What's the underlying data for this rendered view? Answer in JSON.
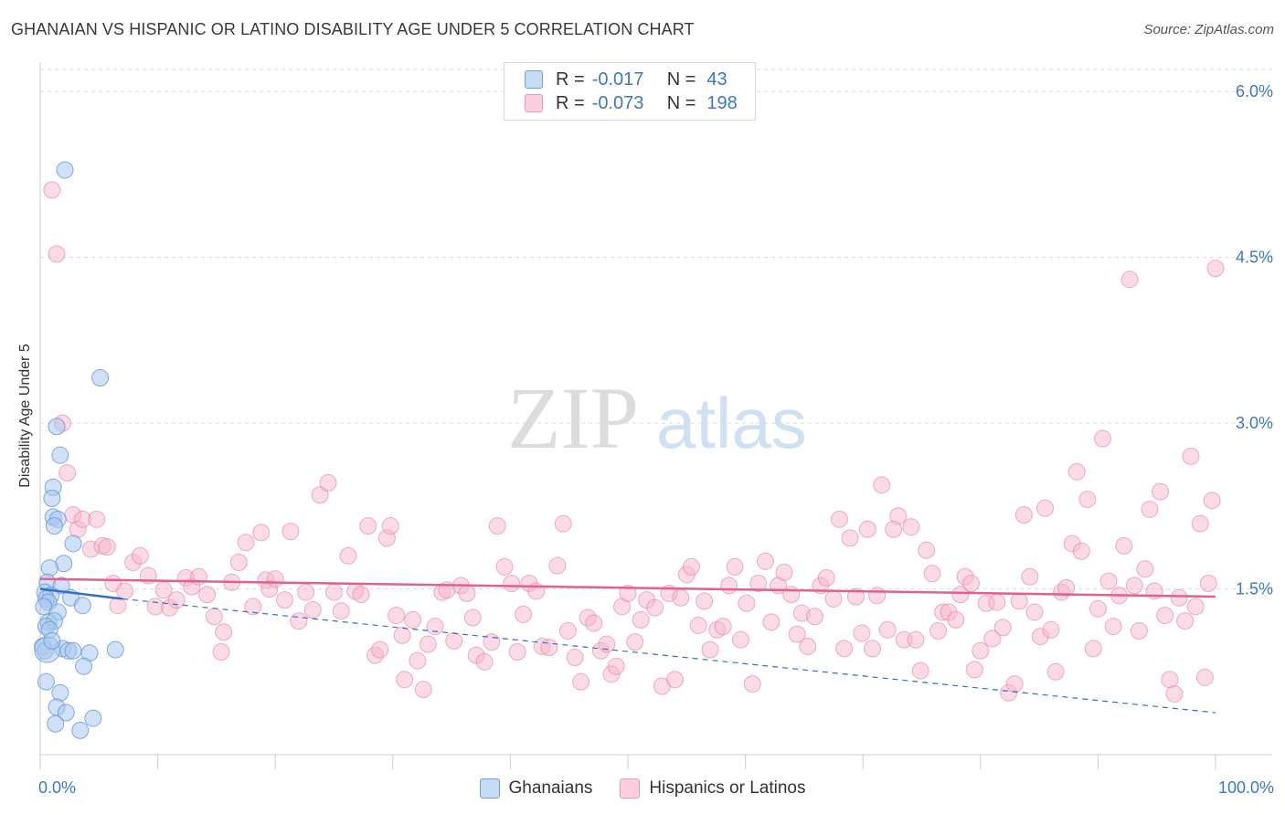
{
  "header": {
    "title": "GHANAIAN VS HISPANIC OR LATINO DISABILITY AGE UNDER 5 CORRELATION CHART",
    "source": "Source: ZipAtlas.com"
  },
  "watermark": {
    "zip": "ZIP",
    "atlas": "atlas"
  },
  "legend": {
    "rows": [
      {
        "r_label": "R =",
        "r_value": "-0.017",
        "n_label": "N =",
        "n_value": "43"
      },
      {
        "r_label": "R =",
        "r_value": "-0.073",
        "n_label": "N =",
        "n_value": "198"
      }
    ]
  },
  "bottom_legend": {
    "series1": "Ghanaians",
    "series2": "Hispanics or Latinos"
  },
  "colors": {
    "blue_fill": "#a9c7ee",
    "blue_stroke": "#5b93d6",
    "blue_line": "#2f6fcf",
    "pink_fill": "#f5b6c9",
    "pink_stroke": "#e47d9e",
    "pink_line": "#e0628c",
    "tick_label": "#3a78c9",
    "grid": "#dddddd"
  },
  "chart_data": {
    "type": "scatter",
    "title": "GHANAIAN VS HISPANIC OR LATINO DISABILITY AGE UNDER 5 CORRELATION CHART",
    "xlabel": "",
    "ylabel": "Disability Age Under 5",
    "xlim": [
      0,
      100
    ],
    "ylim": [
      0,
      6.2
    ],
    "x_tick_labels": [
      "0.0%",
      "100.0%"
    ],
    "y_ticks": [
      1.5,
      3.0,
      4.5,
      6.0
    ],
    "y_tick_labels": [
      "1.5%",
      "3.0%",
      "4.5%",
      "6.0%"
    ],
    "grid": true,
    "legend_position": "top-center",
    "series": [
      {
        "name": "Ghanaians",
        "r": -0.017,
        "n": 43,
        "trend_solid": [
          [
            0,
            1.5
          ],
          [
            7,
            1.41
          ]
        ],
        "trend_dashed": [
          [
            7,
            1.41
          ],
          [
            100,
            0.38
          ]
        ],
        "points": [
          [
            2.1,
            5.29
          ],
          [
            5.1,
            3.41
          ],
          [
            1.7,
            2.71
          ],
          [
            1.4,
            2.97
          ],
          [
            1.1,
            2.42
          ],
          [
            1.0,
            2.32
          ],
          [
            1.1,
            2.15
          ],
          [
            1.5,
            2.13
          ],
          [
            1.2,
            2.07
          ],
          [
            2.8,
            1.91
          ],
          [
            2.0,
            1.73
          ],
          [
            0.8,
            1.69
          ],
          [
            0.6,
            1.56
          ],
          [
            1.8,
            1.53
          ],
          [
            0.4,
            1.47
          ],
          [
            0.9,
            1.44
          ],
          [
            0.5,
            1.41
          ],
          [
            0.7,
            1.38
          ],
          [
            2.6,
            1.42
          ],
          [
            3.6,
            1.35
          ],
          [
            0.3,
            1.34
          ],
          [
            1.5,
            1.29
          ],
          [
            0.7,
            1.2
          ],
          [
            1.2,
            1.21
          ],
          [
            0.5,
            1.16
          ],
          [
            0.8,
            1.13
          ],
          [
            0.2,
            0.98
          ],
          [
            0.4,
            0.94
          ],
          [
            1.9,
            0.96
          ],
          [
            2.4,
            0.94
          ],
          [
            2.8,
            0.94
          ],
          [
            6.4,
            0.95
          ],
          [
            4.2,
            0.92
          ],
          [
            0.5,
            0.66
          ],
          [
            3.7,
            0.8
          ],
          [
            1.7,
            0.56
          ],
          [
            1.4,
            0.43
          ],
          [
            2.2,
            0.38
          ],
          [
            4.5,
            0.33
          ],
          [
            1.3,
            0.28
          ],
          [
            3.4,
            0.22
          ],
          [
            0.6,
            0.95
          ],
          [
            1.0,
            1.03
          ]
        ]
      },
      {
        "name": "Hispanics or Latinos",
        "r": -0.073,
        "n": 198,
        "trend": [
          [
            0,
            1.59
          ],
          [
            100,
            1.43
          ]
        ],
        "points": [
          [
            1.0,
            5.11
          ],
          [
            1.4,
            4.53
          ],
          [
            1.9,
            3.0
          ],
          [
            2.3,
            2.55
          ],
          [
            2.8,
            2.17
          ],
          [
            3.2,
            2.04
          ],
          [
            3.6,
            2.13
          ],
          [
            4.3,
            1.86
          ],
          [
            4.8,
            2.13
          ],
          [
            5.3,
            1.89
          ],
          [
            5.7,
            1.88
          ],
          [
            6.2,
            1.55
          ],
          [
            6.6,
            1.35
          ],
          [
            7.2,
            1.48
          ],
          [
            7.9,
            1.74
          ],
          [
            8.5,
            1.8
          ],
          [
            9.2,
            1.62
          ],
          [
            9.8,
            1.34
          ],
          [
            10.5,
            1.49
          ],
          [
            11.0,
            1.33
          ],
          [
            11.6,
            1.4
          ],
          [
            12.4,
            1.6
          ],
          [
            12.9,
            1.52
          ],
          [
            13.5,
            1.61
          ],
          [
            14.2,
            1.45
          ],
          [
            14.8,
            1.25
          ],
          [
            15.4,
            0.93
          ],
          [
            15.6,
            1.11
          ],
          [
            16.3,
            1.56
          ],
          [
            16.9,
            1.74
          ],
          [
            17.5,
            1.92
          ],
          [
            18.1,
            1.34
          ],
          [
            18.8,
            2.01
          ],
          [
            19.2,
            1.58
          ],
          [
            19.5,
            1.5
          ],
          [
            20.0,
            1.59
          ],
          [
            20.8,
            1.4
          ],
          [
            21.3,
            2.02
          ],
          [
            22.0,
            1.21
          ],
          [
            22.6,
            1.47
          ],
          [
            23.2,
            1.31
          ],
          [
            23.8,
            2.35
          ],
          [
            24.5,
            2.46
          ],
          [
            25.0,
            1.47
          ],
          [
            25.6,
            1.3
          ],
          [
            26.2,
            1.8
          ],
          [
            26.8,
            1.48
          ],
          [
            27.3,
            1.45
          ],
          [
            27.9,
            2.07
          ],
          [
            28.5,
            0.9
          ],
          [
            28.9,
            0.95
          ],
          [
            29.5,
            1.96
          ],
          [
            29.8,
            2.07
          ],
          [
            30.3,
            1.26
          ],
          [
            30.8,
            1.08
          ],
          [
            31.0,
            0.68
          ],
          [
            31.7,
            1.22
          ],
          [
            32.1,
            0.85
          ],
          [
            32.6,
            0.59
          ],
          [
            33.0,
            1.0
          ],
          [
            33.6,
            1.16
          ],
          [
            34.2,
            1.47
          ],
          [
            34.6,
            1.49
          ],
          [
            35.2,
            1.03
          ],
          [
            35.8,
            1.53
          ],
          [
            36.3,
            1.46
          ],
          [
            36.8,
            1.24
          ],
          [
            37.1,
            0.9
          ],
          [
            37.8,
            0.84
          ],
          [
            38.4,
            1.02
          ],
          [
            38.9,
            2.07
          ],
          [
            39.5,
            1.7
          ],
          [
            40.1,
            1.55
          ],
          [
            40.6,
            0.93
          ],
          [
            41.1,
            1.27
          ],
          [
            41.6,
            1.55
          ],
          [
            42.2,
            1.48
          ],
          [
            42.7,
            0.98
          ],
          [
            43.3,
            0.97
          ],
          [
            44.0,
            1.71
          ],
          [
            44.5,
            2.09
          ],
          [
            44.9,
            1.12
          ],
          [
            45.5,
            0.88
          ],
          [
            46.0,
            0.66
          ],
          [
            46.6,
            1.24
          ],
          [
            47.1,
            1.19
          ],
          [
            47.7,
            0.94
          ],
          [
            48.2,
            1.0
          ],
          [
            48.6,
            0.73
          ],
          [
            49.0,
            0.8
          ],
          [
            49.5,
            1.34
          ],
          [
            50.0,
            1.46
          ],
          [
            50.6,
            1.02
          ],
          [
            51.1,
            1.22
          ],
          [
            51.6,
            1.4
          ],
          [
            52.3,
            1.33
          ],
          [
            52.9,
            0.62
          ],
          [
            53.5,
            1.46
          ],
          [
            54.0,
            0.68
          ],
          [
            54.5,
            1.42
          ],
          [
            55.0,
            1.63
          ],
          [
            55.4,
            1.7
          ],
          [
            56.0,
            1.17
          ],
          [
            56.5,
            1.39
          ],
          [
            57.0,
            0.95
          ],
          [
            57.6,
            1.13
          ],
          [
            58.1,
            1.16
          ],
          [
            58.6,
            1.53
          ],
          [
            59.1,
            1.7
          ],
          [
            59.6,
            1.04
          ],
          [
            60.1,
            1.37
          ],
          [
            60.6,
            0.64
          ],
          [
            61.1,
            1.55
          ],
          [
            61.7,
            1.75
          ],
          [
            62.2,
            1.2
          ],
          [
            62.8,
            1.53
          ],
          [
            63.3,
            1.65
          ],
          [
            63.9,
            1.45
          ],
          [
            64.4,
            1.09
          ],
          [
            64.8,
            1.28
          ],
          [
            65.3,
            0.98
          ],
          [
            65.9,
            1.25
          ],
          [
            66.4,
            1.53
          ],
          [
            66.9,
            1.6
          ],
          [
            67.5,
            1.41
          ],
          [
            68.0,
            2.13
          ],
          [
            68.4,
            0.96
          ],
          [
            68.9,
            1.96
          ],
          [
            69.4,
            1.43
          ],
          [
            69.9,
            1.1
          ],
          [
            70.4,
            2.04
          ],
          [
            70.8,
            0.96
          ],
          [
            71.2,
            1.44
          ],
          [
            71.6,
            2.44
          ],
          [
            72.1,
            1.13
          ],
          [
            72.6,
            2.04
          ],
          [
            73.0,
            2.16
          ],
          [
            73.5,
            1.04
          ],
          [
            74.1,
            2.06
          ],
          [
            74.5,
            1.04
          ],
          [
            74.9,
            0.76
          ],
          [
            75.4,
            1.85
          ],
          [
            75.9,
            1.64
          ],
          [
            76.4,
            1.12
          ],
          [
            76.8,
            1.29
          ],
          [
            77.3,
            1.29
          ],
          [
            77.9,
            1.22
          ],
          [
            78.3,
            1.45
          ],
          [
            78.7,
            1.61
          ],
          [
            79.2,
            1.55
          ],
          [
            79.5,
            0.77
          ],
          [
            80.0,
            0.94
          ],
          [
            80.5,
            1.37
          ],
          [
            81.0,
            1.05
          ],
          [
            81.4,
            1.38
          ],
          [
            81.9,
            1.15
          ],
          [
            82.4,
            0.56
          ],
          [
            82.9,
            0.64
          ],
          [
            83.3,
            1.39
          ],
          [
            83.7,
            2.17
          ],
          [
            84.2,
            1.61
          ],
          [
            84.6,
            1.29
          ],
          [
            85.1,
            1.07
          ],
          [
            85.5,
            2.23
          ],
          [
            86.0,
            1.13
          ],
          [
            86.4,
            0.75
          ],
          [
            86.9,
            1.47
          ],
          [
            87.3,
            1.51
          ],
          [
            87.8,
            1.91
          ],
          [
            88.2,
            2.56
          ],
          [
            88.6,
            1.84
          ],
          [
            89.1,
            2.31
          ],
          [
            89.6,
            0.96
          ],
          [
            90.0,
            1.32
          ],
          [
            90.4,
            2.86
          ],
          [
            90.9,
            1.57
          ],
          [
            91.3,
            1.16
          ],
          [
            91.8,
            1.44
          ],
          [
            92.2,
            1.89
          ],
          [
            92.7,
            4.3
          ],
          [
            93.1,
            1.53
          ],
          [
            93.5,
            1.12
          ],
          [
            94.0,
            1.68
          ],
          [
            94.4,
            2.22
          ],
          [
            94.8,
            1.48
          ],
          [
            95.3,
            2.38
          ],
          [
            95.7,
            1.26
          ],
          [
            96.1,
            0.68
          ],
          [
            96.5,
            0.55
          ],
          [
            96.9,
            1.42
          ],
          [
            97.4,
            1.21
          ],
          [
            97.9,
            2.7
          ],
          [
            98.3,
            1.34
          ],
          [
            98.7,
            2.09
          ],
          [
            99.1,
            0.7
          ],
          [
            99.4,
            1.55
          ],
          [
            99.7,
            2.3
          ],
          [
            100.0,
            4.4
          ]
        ]
      }
    ]
  }
}
